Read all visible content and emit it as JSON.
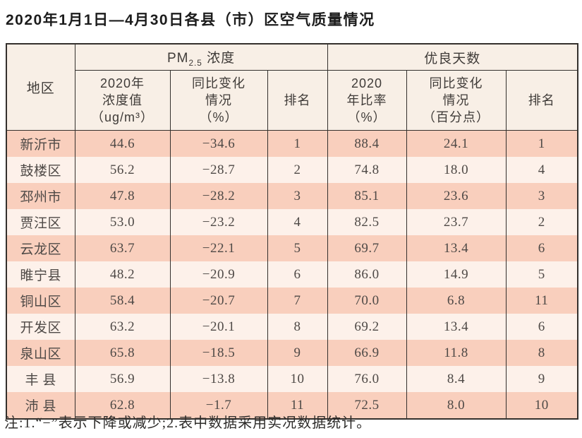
{
  "title": "2020年1月1日—4月30日各县（市）区空气质量情况",
  "colors": {
    "row_dark": "#f9cfbd",
    "row_light": "#fdf1ea",
    "header_bg": "#f8efe6",
    "border": "#34302d",
    "text": "#4e4946"
  },
  "table": {
    "region_header": "地区",
    "group_headers": {
      "pm25": {
        "prefix": "PM",
        "sub": "2.5",
        "suffix": " 浓度"
      },
      "good_days": "优良天数"
    },
    "sub_headers": {
      "pm25_value": "2020年\n浓度值\n（ug/m³）",
      "pm25_change": "同比变化\n情况\n（%）",
      "pm25_rank": "排名",
      "good_rate": "2020\n年比率\n（%）",
      "good_change": "同比变化\n情况\n（百分点）",
      "good_rank": "排名"
    },
    "row_fields": [
      "region",
      "pm25_value",
      "pm25_change",
      "pm25_rank",
      "good_rate",
      "good_change",
      "good_rank"
    ],
    "rows": [
      {
        "region": "新沂市",
        "pm25_value": "44.6",
        "pm25_change": "−34.6",
        "pm25_rank": "1",
        "good_rate": "88.4",
        "good_change": "24.1",
        "good_rank": "1"
      },
      {
        "region": "鼓楼区",
        "pm25_value": "56.2",
        "pm25_change": "−28.7",
        "pm25_rank": "2",
        "good_rate": "74.8",
        "good_change": "18.0",
        "good_rank": "4"
      },
      {
        "region": "邳州市",
        "pm25_value": "47.8",
        "pm25_change": "−28.2",
        "pm25_rank": "3",
        "good_rate": "85.1",
        "good_change": "23.6",
        "good_rank": "3"
      },
      {
        "region": "贾汪区",
        "pm25_value": "53.0",
        "pm25_change": "−23.2",
        "pm25_rank": "4",
        "good_rate": "82.5",
        "good_change": "23.7",
        "good_rank": "2"
      },
      {
        "region": "云龙区",
        "pm25_value": "63.7",
        "pm25_change": "−22.1",
        "pm25_rank": "5",
        "good_rate": "69.7",
        "good_change": "13.4",
        "good_rank": "6"
      },
      {
        "region": "睢宁县",
        "pm25_value": "48.2",
        "pm25_change": "−20.9",
        "pm25_rank": "6",
        "good_rate": "86.0",
        "good_change": "14.9",
        "good_rank": "5"
      },
      {
        "region": "铜山区",
        "pm25_value": "58.4",
        "pm25_change": "−20.7",
        "pm25_rank": "7",
        "good_rate": "70.0",
        "good_change": "6.8",
        "good_rank": "11"
      },
      {
        "region": "开发区",
        "pm25_value": "63.2",
        "pm25_change": "−20.1",
        "pm25_rank": "8",
        "good_rate": "69.2",
        "good_change": "13.4",
        "good_rank": "6"
      },
      {
        "region": "泉山区",
        "pm25_value": "65.8",
        "pm25_change": "−18.5",
        "pm25_rank": "9",
        "good_rate": "66.9",
        "good_change": "11.8",
        "good_rank": "8"
      },
      {
        "region": "丰 县",
        "pm25_value": "56.9",
        "pm25_change": "−13.8",
        "pm25_rank": "10",
        "good_rate": "76.0",
        "good_change": "8.4",
        "good_rank": "9"
      },
      {
        "region": "沛 县",
        "pm25_value": "62.8",
        "pm25_change": "−1.7",
        "pm25_rank": "11",
        "good_rate": "72.5",
        "good_change": "8.0",
        "good_rank": "10"
      }
    ]
  },
  "footnote": "注:1.“−”表示下降或减少;2.表中数据采用实况数据统计。"
}
